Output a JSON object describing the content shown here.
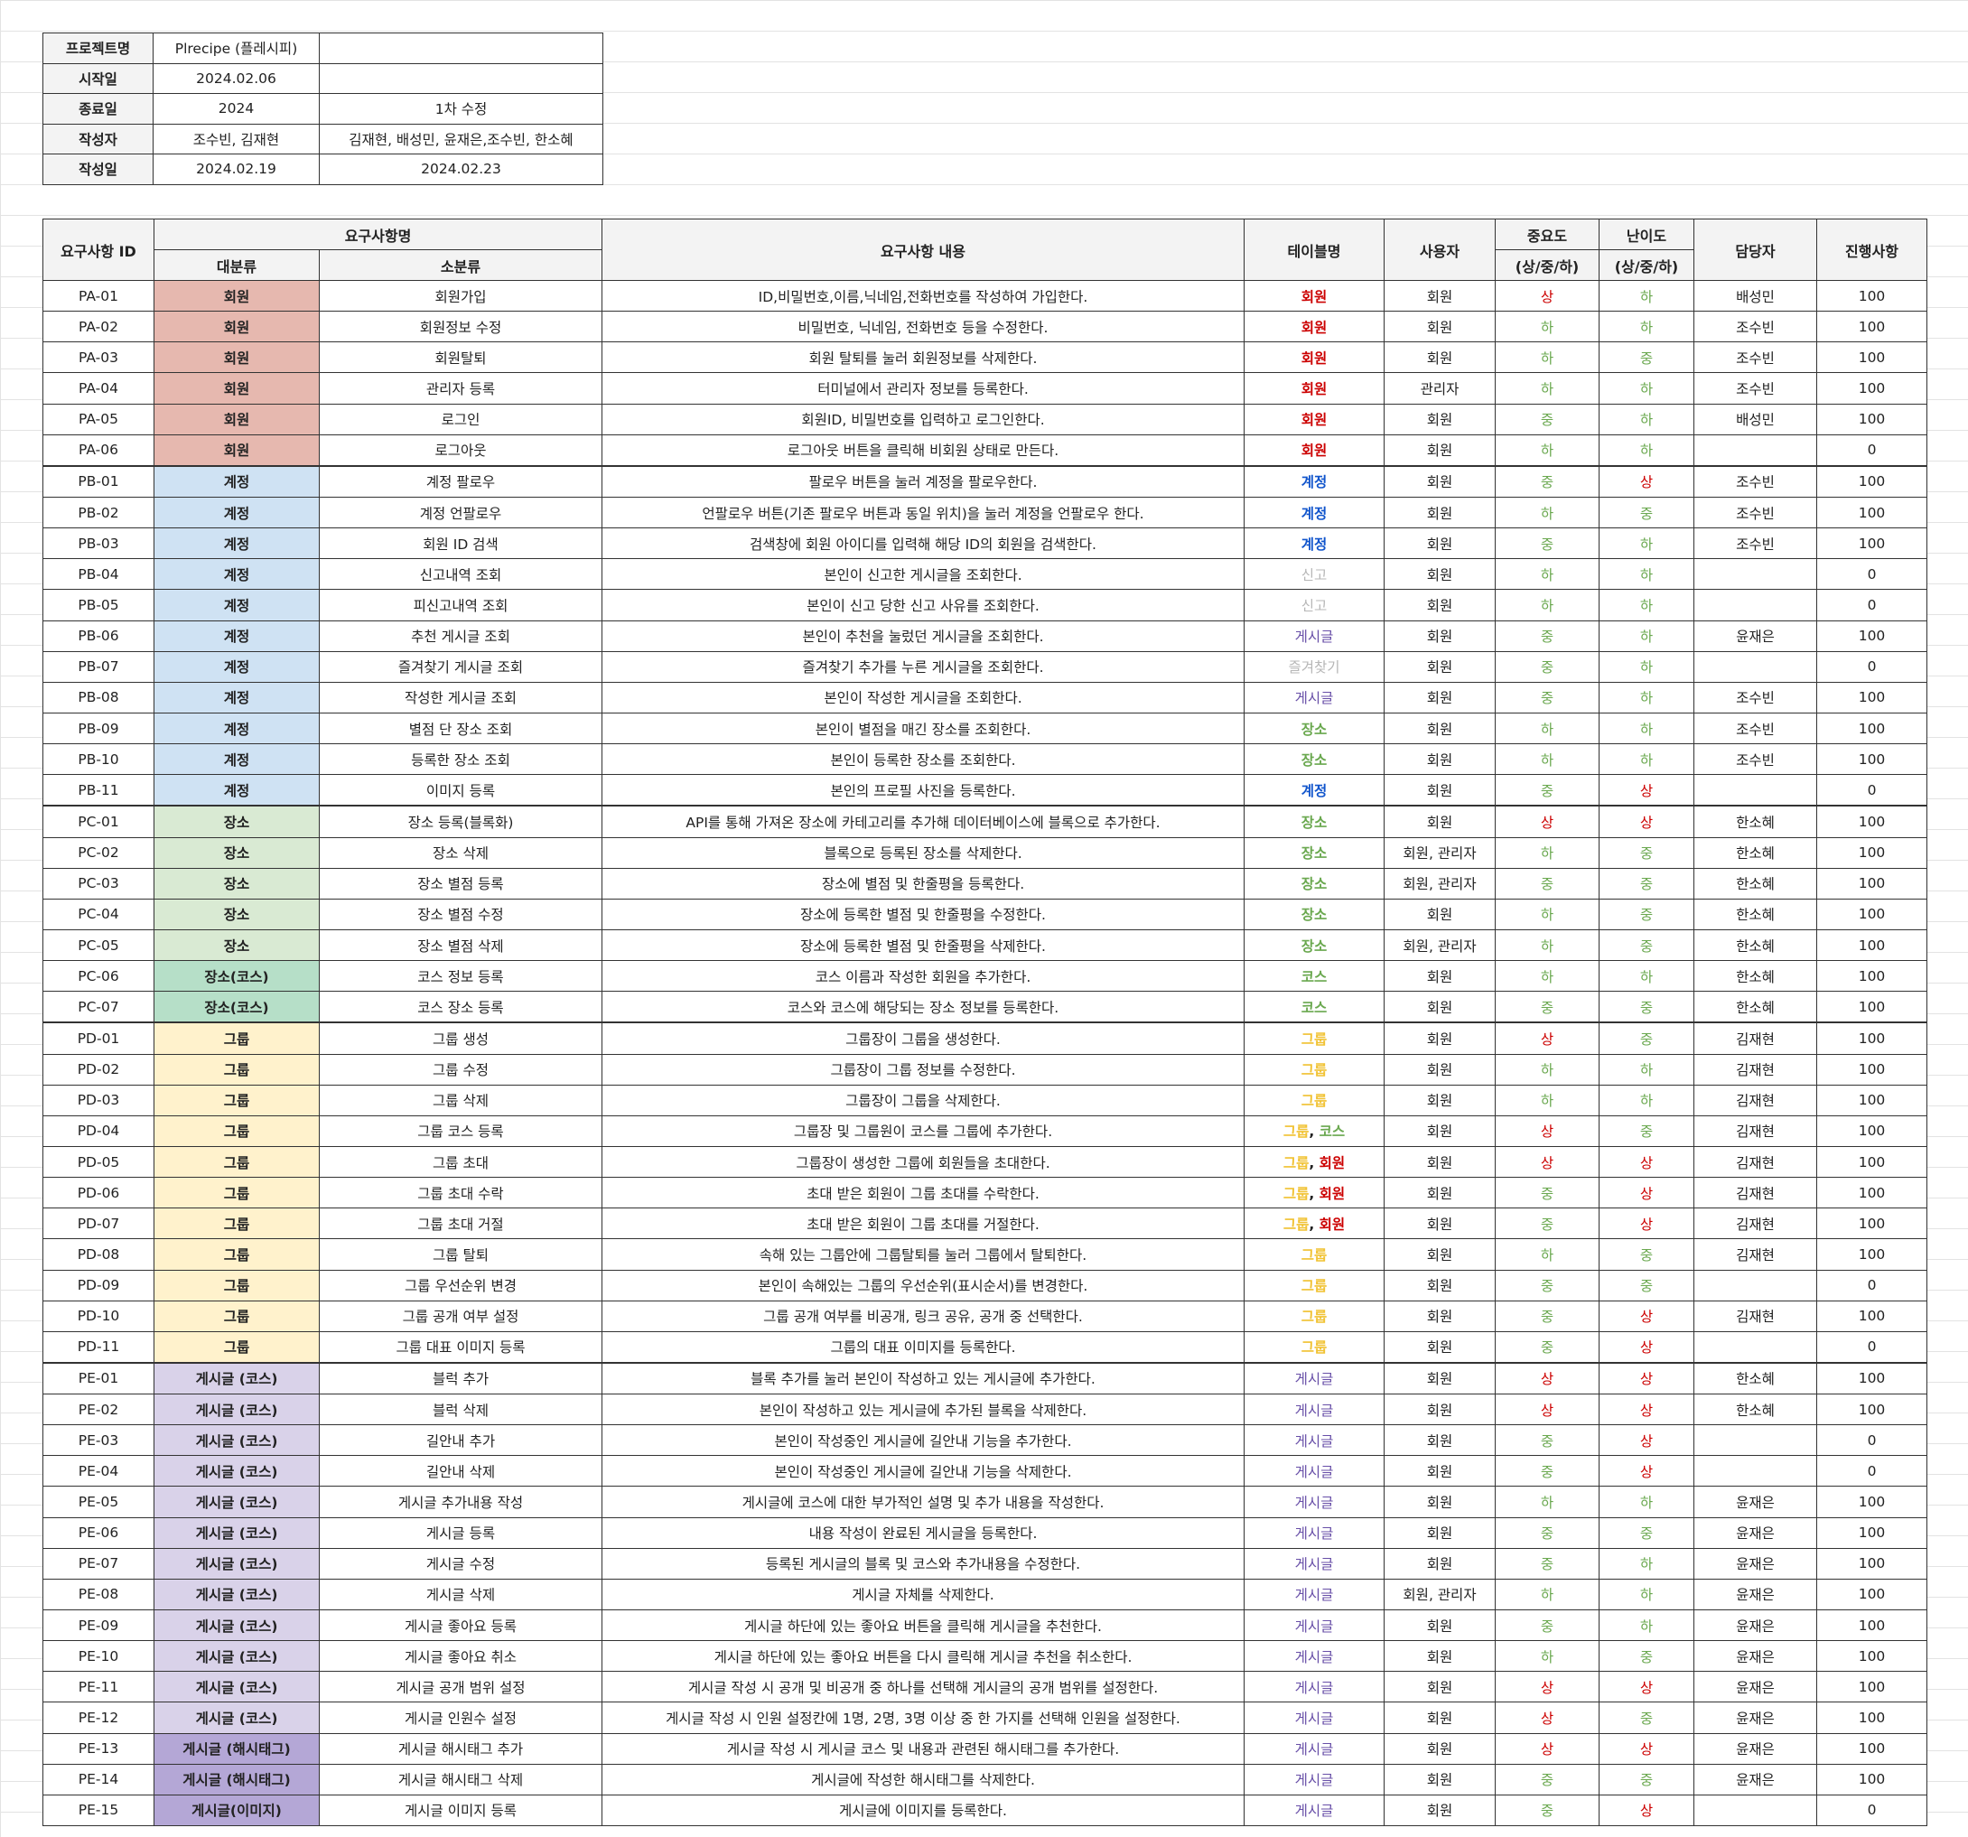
{
  "info": {
    "project_label": "프로젝트명",
    "project_value": "Plrecipe (플레시피)",
    "start_label": "시작일",
    "start_value": "2024.02.06",
    "end_label": "종료일",
    "end_value": "2024",
    "end_note": "1차 수정",
    "author_label": "작성자",
    "author_value": "조수빈, 김재현",
    "author_note": "김재현, 배성민, 윤재은,조수빈, 한소혜",
    "date_label": "작성일",
    "date_value": "2024.02.19",
    "date_note": "2024.02.23"
  },
  "headers": {
    "id": "요구사항 ID",
    "name": "요구사항명",
    "major": "대분류",
    "minor": "소분류",
    "content": "요구사항 내용",
    "table": "테이블명",
    "user": "사용자",
    "importance": "중요도",
    "importance_sub": "(상/중/하)",
    "difficulty": "난이도",
    "difficulty_sub": "(상/중/하)",
    "owner": "담당자",
    "progress": "진행사항"
  },
  "rows": [
    {
      "id": "PA-01",
      "cat": "회원",
      "cls": "회원",
      "minor": "회원가입",
      "content": "ID,비밀번호,이름,닉네임,전화번호를 작성하여 가입한다.",
      "tables": [
        {
          "t": "회원",
          "c": "회원"
        }
      ],
      "user": "회원",
      "imp": "상",
      "dif": "하",
      "owner": "배성민",
      "prog": "100"
    },
    {
      "id": "PA-02",
      "cat": "회원",
      "cls": "회원",
      "minor": "회원정보 수정",
      "content": "비밀번호, 닉네임, 전화번호 등을 수정한다.",
      "tables": [
        {
          "t": "회원",
          "c": "회원"
        }
      ],
      "user": "회원",
      "imp": "하",
      "dif": "하",
      "owner": "조수빈",
      "prog": "100"
    },
    {
      "id": "PA-03",
      "cat": "회원",
      "cls": "회원",
      "minor": "회원탈퇴",
      "content": "회원 탈퇴를 눌러 회원정보를 삭제한다.",
      "tables": [
        {
          "t": "회원",
          "c": "회원"
        }
      ],
      "user": "회원",
      "imp": "하",
      "dif": "중",
      "owner": "조수빈",
      "prog": "100"
    },
    {
      "id": "PA-04",
      "cat": "회원",
      "cls": "회원",
      "minor": "관리자 등록",
      "content": "터미널에서 관리자 정보를 등록한다.",
      "tables": [
        {
          "t": "회원",
          "c": "회원"
        }
      ],
      "user": "관리자",
      "imp": "하",
      "dif": "하",
      "owner": "조수빈",
      "prog": "100"
    },
    {
      "id": "PA-05",
      "cat": "회원",
      "cls": "회원",
      "minor": "로그인",
      "content": "회원ID, 비밀번호를 입력하고 로그인한다.",
      "tables": [
        {
          "t": "회원",
          "c": "회원"
        }
      ],
      "user": "회원",
      "imp": "중",
      "dif": "하",
      "owner": "배성민",
      "prog": "100"
    },
    {
      "id": "PA-06",
      "cat": "회원",
      "cls": "회원",
      "minor": "로그아웃",
      "content": "로그아웃 버튼을 클릭해 비회원 상태로 만든다.",
      "tables": [
        {
          "t": "회원",
          "c": "회원"
        }
      ],
      "user": "회원",
      "imp": "하",
      "dif": "하",
      "owner": "",
      "prog": "0"
    },
    {
      "id": "PB-01",
      "cat": "계정",
      "cls": "계정",
      "minor": "계정 팔로우",
      "content": "팔로우 버튼을 눌러 계정을 팔로우한다.",
      "tables": [
        {
          "t": "계정",
          "c": "계정"
        }
      ],
      "user": "회원",
      "imp": "중",
      "dif": "상",
      "owner": "조수빈",
      "prog": "100",
      "top": true
    },
    {
      "id": "PB-02",
      "cat": "계정",
      "cls": "계정",
      "minor": "계정 언팔로우",
      "content": "언팔로우 버튼(기존 팔로우 버튼과 동일 위치)을 눌러 계정을 언팔로우 한다.",
      "tables": [
        {
          "t": "계정",
          "c": "계정"
        }
      ],
      "user": "회원",
      "imp": "하",
      "dif": "중",
      "owner": "조수빈",
      "prog": "100"
    },
    {
      "id": "PB-03",
      "cat": "계정",
      "cls": "계정",
      "minor": "회원 ID 검색",
      "content": "검색창에 회원 아이디를 입력해 해당 ID의 회원을 검색한다.",
      "tables": [
        {
          "t": "계정",
          "c": "계정"
        }
      ],
      "user": "회원",
      "imp": "중",
      "dif": "하",
      "owner": "조수빈",
      "prog": "100"
    },
    {
      "id": "PB-04",
      "cat": "계정",
      "cls": "계정",
      "minor": "신고내역 조회",
      "content": "본인이 신고한 게시글을 조회한다.",
      "tables": [
        {
          "t": "신고",
          "c": "신고"
        }
      ],
      "user": "회원",
      "imp": "하",
      "dif": "하",
      "owner": "",
      "prog": "0"
    },
    {
      "id": "PB-05",
      "cat": "계정",
      "cls": "계정",
      "minor": "피신고내역 조회",
      "content": "본인이 신고 당한 신고 사유를 조회한다.",
      "tables": [
        {
          "t": "신고",
          "c": "신고"
        }
      ],
      "user": "회원",
      "imp": "하",
      "dif": "하",
      "owner": "",
      "prog": "0"
    },
    {
      "id": "PB-06",
      "cat": "계정",
      "cls": "계정",
      "minor": "추천 게시글 조회",
      "content": "본인이 추천을 눌렀던 게시글을 조회한다.",
      "tables": [
        {
          "t": "게시글",
          "c": "게시글"
        }
      ],
      "user": "회원",
      "imp": "중",
      "dif": "하",
      "owner": "윤재은",
      "prog": "100"
    },
    {
      "id": "PB-07",
      "cat": "계정",
      "cls": "계정",
      "minor": "즐겨찾기 게시글 조회",
      "content": "즐겨찾기 추가를 누른 게시글을 조회한다.",
      "tables": [
        {
          "t": "즐겨찾기",
          "c": "즐겨찾기"
        }
      ],
      "user": "회원",
      "imp": "중",
      "dif": "하",
      "owner": "",
      "prog": "0"
    },
    {
      "id": "PB-08",
      "cat": "계정",
      "cls": "계정",
      "minor": "작성한 게시글 조회",
      "content": "본인이 작성한 게시글을 조회한다.",
      "tables": [
        {
          "t": "게시글",
          "c": "게시글"
        }
      ],
      "user": "회원",
      "imp": "중",
      "dif": "하",
      "owner": "조수빈",
      "prog": "100"
    },
    {
      "id": "PB-09",
      "cat": "계정",
      "cls": "계정",
      "minor": "별점 단 장소 조회",
      "content": "본인이 별점을 매긴 장소를 조회한다.",
      "tables": [
        {
          "t": "장소",
          "c": "장소"
        }
      ],
      "user": "회원",
      "imp": "하",
      "dif": "하",
      "owner": "조수빈",
      "prog": "100"
    },
    {
      "id": "PB-10",
      "cat": "계정",
      "cls": "계정",
      "minor": "등록한 장소 조회",
      "content": "본인이 등록한 장소를 조회한다.",
      "tables": [
        {
          "t": "장소",
          "c": "장소"
        }
      ],
      "user": "회원",
      "imp": "하",
      "dif": "하",
      "owner": "조수빈",
      "prog": "100"
    },
    {
      "id": "PB-11",
      "cat": "계정",
      "cls": "계정",
      "minor": "이미지 등록",
      "content": "본인의 프로필 사진을 등록한다.",
      "tables": [
        {
          "t": "계정",
          "c": "계정"
        }
      ],
      "user": "회원",
      "imp": "중",
      "dif": "상",
      "owner": "",
      "prog": "0"
    },
    {
      "id": "PC-01",
      "cat": "장소",
      "cls": "장소",
      "minor": "장소 등록(블록화)",
      "content": "API를 통해 가져온 장소에 카테고리를 추가해 데이터베이스에 블록으로 추가한다.",
      "tables": [
        {
          "t": "장소",
          "c": "장소"
        }
      ],
      "user": "회원",
      "imp": "상",
      "dif": "상",
      "owner": "한소혜",
      "prog": "100",
      "top": true
    },
    {
      "id": "PC-02",
      "cat": "장소",
      "cls": "장소",
      "minor": "장소 삭제",
      "content": "블록으로 등록된 장소를 삭제한다.",
      "tables": [
        {
          "t": "장소",
          "c": "장소"
        }
      ],
      "user": "회원, 관리자",
      "imp": "하",
      "dif": "중",
      "owner": "한소혜",
      "prog": "100"
    },
    {
      "id": "PC-03",
      "cat": "장소",
      "cls": "장소",
      "minor": "장소 별점 등록",
      "content": "장소에 별점 및 한줄평을 등록한다.",
      "tables": [
        {
          "t": "장소",
          "c": "장소"
        }
      ],
      "user": "회원, 관리자",
      "imp": "중",
      "dif": "중",
      "owner": "한소혜",
      "prog": "100"
    },
    {
      "id": "PC-04",
      "cat": "장소",
      "cls": "장소",
      "minor": "장소 별점 수정",
      "content": "장소에 등록한 별점 및 한줄평을 수정한다.",
      "tables": [
        {
          "t": "장소",
          "c": "장소"
        }
      ],
      "user": "회원",
      "imp": "하",
      "dif": "중",
      "owner": "한소혜",
      "prog": "100"
    },
    {
      "id": "PC-05",
      "cat": "장소",
      "cls": "장소",
      "minor": "장소 별점 삭제",
      "content": "장소에 등록한 별점 및 한줄평을 삭제한다.",
      "tables": [
        {
          "t": "장소",
          "c": "장소"
        }
      ],
      "user": "회원, 관리자",
      "imp": "하",
      "dif": "중",
      "owner": "한소혜",
      "prog": "100"
    },
    {
      "id": "PC-06",
      "cat": "장소(코스)",
      "cls": "장소코스",
      "minor": "코스 정보 등록",
      "content": "코스 이름과 작성한 회원을 추가한다.",
      "tables": [
        {
          "t": "코스",
          "c": "코스"
        }
      ],
      "user": "회원",
      "imp": "하",
      "dif": "하",
      "owner": "한소혜",
      "prog": "100"
    },
    {
      "id": "PC-07",
      "cat": "장소(코스)",
      "cls": "장소코스",
      "minor": "코스 장소 등록",
      "content": "코스와 코스에 해당되는 장소 정보를 등록한다.",
      "tables": [
        {
          "t": "코스",
          "c": "코스"
        }
      ],
      "user": "회원",
      "imp": "중",
      "dif": "중",
      "owner": "한소혜",
      "prog": "100"
    },
    {
      "id": "PD-01",
      "cat": "그룹",
      "cls": "그룹",
      "minor": "그룹 생성",
      "content": "그룹장이 그룹을 생성한다.",
      "tables": [
        {
          "t": "그룹",
          "c": "그룹"
        }
      ],
      "user": "회원",
      "imp": "상",
      "dif": "중",
      "owner": "김재현",
      "prog": "100",
      "top": true
    },
    {
      "id": "PD-02",
      "cat": "그룹",
      "cls": "그룹",
      "minor": "그룹 수정",
      "content": "그룹장이 그룹 정보를 수정한다.",
      "tables": [
        {
          "t": "그룹",
          "c": "그룹"
        }
      ],
      "user": "회원",
      "imp": "하",
      "dif": "하",
      "owner": "김재현",
      "prog": "100"
    },
    {
      "id": "PD-03",
      "cat": "그룹",
      "cls": "그룹",
      "minor": "그룹 삭제",
      "content": "그룹장이 그룹을 삭제한다.",
      "tables": [
        {
          "t": "그룹",
          "c": "그룹"
        }
      ],
      "user": "회원",
      "imp": "하",
      "dif": "하",
      "owner": "김재현",
      "prog": "100"
    },
    {
      "id": "PD-04",
      "cat": "그룹",
      "cls": "그룹",
      "minor": "그룹 코스 등록",
      "content": "그룹장 및 그룹원이 코스를 그룹에 추가한다.",
      "tables": [
        {
          "t": "그룹",
          "c": "그룹"
        },
        {
          "t": ", ",
          "c": ""
        },
        {
          "t": "코스",
          "c": "코스"
        }
      ],
      "user": "회원",
      "imp": "상",
      "dif": "중",
      "owner": "김재현",
      "prog": "100"
    },
    {
      "id": "PD-05",
      "cat": "그룹",
      "cls": "그룹",
      "minor": "그룹 초대",
      "content": "그룹장이 생성한 그룹에 회원들을 초대한다.",
      "tables": [
        {
          "t": "그룹",
          "c": "그룹"
        },
        {
          "t": ", ",
          "c": ""
        },
        {
          "t": "회원",
          "c": "회원"
        }
      ],
      "user": "회원",
      "imp": "상",
      "dif": "상",
      "owner": "김재현",
      "prog": "100"
    },
    {
      "id": "PD-06",
      "cat": "그룹",
      "cls": "그룹",
      "minor": "그룹 초대 수락",
      "content": "초대 받은 회원이 그룹 초대를 수락한다.",
      "tables": [
        {
          "t": "그룹",
          "c": "그룹"
        },
        {
          "t": ", ",
          "c": ""
        },
        {
          "t": "회원",
          "c": "회원"
        }
      ],
      "user": "회원",
      "imp": "중",
      "dif": "상",
      "owner": "김재현",
      "prog": "100"
    },
    {
      "id": "PD-07",
      "cat": "그룹",
      "cls": "그룹",
      "minor": "그룹 초대 거절",
      "content": "초대 받은 회원이 그룹 초대를 거절한다.",
      "tables": [
        {
          "t": "그룹",
          "c": "그룹"
        },
        {
          "t": ", ",
          "c": ""
        },
        {
          "t": "회원",
          "c": "회원"
        }
      ],
      "user": "회원",
      "imp": "중",
      "dif": "상",
      "owner": "김재현",
      "prog": "100"
    },
    {
      "id": "PD-08",
      "cat": "그룹",
      "cls": "그룹",
      "minor": "그룹 탈퇴",
      "content": "속해 있는 그룹안에 그룹탈퇴를 눌러 그룹에서 탈퇴한다.",
      "tables": [
        {
          "t": "그룹",
          "c": "그룹"
        }
      ],
      "user": "회원",
      "imp": "하",
      "dif": "중",
      "owner": "김재현",
      "prog": "100"
    },
    {
      "id": "PD-09",
      "cat": "그룹",
      "cls": "그룹",
      "minor": "그룹 우선순위 변경",
      "content": "본인이 속해있는 그룹의 우선순위(표시순서)를 변경한다.",
      "tables": [
        {
          "t": "그룹",
          "c": "그룹"
        }
      ],
      "user": "회원",
      "imp": "중",
      "dif": "중",
      "owner": "",
      "prog": "0"
    },
    {
      "id": "PD-10",
      "cat": "그룹",
      "cls": "그룹",
      "minor": "그룹 공개 여부 설정",
      "content": "그룹 공개 여부를 비공개, 링크 공유, 공개 중 선택한다.",
      "tables": [
        {
          "t": "그룹",
          "c": "그룹"
        }
      ],
      "user": "회원",
      "imp": "중",
      "dif": "상",
      "owner": "김재현",
      "prog": "100"
    },
    {
      "id": "PD-11",
      "cat": "그룹",
      "cls": "그룹",
      "minor": "그룹 대표 이미지 등록",
      "content": "그룹의 대표 이미지를 등록한다.",
      "tables": [
        {
          "t": "그룹",
          "c": "그룹"
        }
      ],
      "user": "회원",
      "imp": "중",
      "dif": "상",
      "owner": "",
      "prog": "0"
    },
    {
      "id": "PE-01",
      "cat": "게시글 (코스)",
      "cls": "게시글코스",
      "minor": "블럭 추가",
      "content": "블록 추가를 눌러 본인이 작성하고 있는 게시글에 추가한다.",
      "tables": [
        {
          "t": "게시글",
          "c": "게시글"
        }
      ],
      "user": "회원",
      "imp": "상",
      "dif": "상",
      "owner": "한소혜",
      "prog": "100",
      "top": true
    },
    {
      "id": "PE-02",
      "cat": "게시글 (코스)",
      "cls": "게시글코스",
      "minor": "블럭 삭제",
      "content": "본인이 작성하고 있는 게시글에 추가된 블록을 삭제한다.",
      "tables": [
        {
          "t": "게시글",
          "c": "게시글"
        }
      ],
      "user": "회원",
      "imp": "상",
      "dif": "상",
      "owner": "한소혜",
      "prog": "100"
    },
    {
      "id": "PE-03",
      "cat": "게시글 (코스)",
      "cls": "게시글코스",
      "minor": "길안내 추가",
      "content": "본인이 작성중인 게시글에 길안내 기능을 추가한다.",
      "tables": [
        {
          "t": "게시글",
          "c": "게시글"
        }
      ],
      "user": "회원",
      "imp": "중",
      "dif": "상",
      "owner": "",
      "prog": "0"
    },
    {
      "id": "PE-04",
      "cat": "게시글 (코스)",
      "cls": "게시글코스",
      "minor": "길안내 삭제",
      "content": "본인이 작성중인 게시글에 길안내 기능을 삭제한다.",
      "tables": [
        {
          "t": "게시글",
          "c": "게시글"
        }
      ],
      "user": "회원",
      "imp": "중",
      "dif": "상",
      "owner": "",
      "prog": "0"
    },
    {
      "id": "PE-05",
      "cat": "게시글 (코스)",
      "cls": "게시글코스",
      "minor": "게시글 추가내용 작성",
      "content": "게시글에 코스에 대한 부가적인 설명 및 추가 내용을 작성한다.",
      "tables": [
        {
          "t": "게시글",
          "c": "게시글"
        }
      ],
      "user": "회원",
      "imp": "하",
      "dif": "하",
      "owner": "윤재은",
      "prog": "100"
    },
    {
      "id": "PE-06",
      "cat": "게시글 (코스)",
      "cls": "게시글코스",
      "minor": "게시글 등록",
      "content": "내용 작성이 완료된 게시글을 등록한다.",
      "tables": [
        {
          "t": "게시글",
          "c": "게시글"
        }
      ],
      "user": "회원",
      "imp": "중",
      "dif": "중",
      "owner": "윤재은",
      "prog": "100"
    },
    {
      "id": "PE-07",
      "cat": "게시글 (코스)",
      "cls": "게시글코스",
      "minor": "게시글 수정",
      "content": "등록된 게시글의 블록 및 코스와 추가내용을 수정한다.",
      "tables": [
        {
          "t": "게시글",
          "c": "게시글"
        }
      ],
      "user": "회원",
      "imp": "중",
      "dif": "하",
      "owner": "윤재은",
      "prog": "100"
    },
    {
      "id": "PE-08",
      "cat": "게시글 (코스)",
      "cls": "게시글코스",
      "minor": "게시글 삭제",
      "content": "게시글 자체를 삭제한다.",
      "tables": [
        {
          "t": "게시글",
          "c": "게시글"
        }
      ],
      "user": "회원, 관리자",
      "imp": "하",
      "dif": "하",
      "owner": "윤재은",
      "prog": "100"
    },
    {
      "id": "PE-09",
      "cat": "게시글 (코스)",
      "cls": "게시글코스",
      "minor": "게시글 좋아요 등록",
      "content": "게시글 하단에 있는 좋아요 버튼을 클릭해 게시글을 추천한다.",
      "tables": [
        {
          "t": "게시글",
          "c": "게시글"
        }
      ],
      "user": "회원",
      "imp": "중",
      "dif": "하",
      "owner": "윤재은",
      "prog": "100"
    },
    {
      "id": "PE-10",
      "cat": "게시글 (코스)",
      "cls": "게시글코스",
      "minor": "게시글 좋아요 취소",
      "content": "게시글 하단에 있는 좋아요 버튼을 다시 클릭해 게시글 추천을 취소한다.",
      "tables": [
        {
          "t": "게시글",
          "c": "게시글"
        }
      ],
      "user": "회원",
      "imp": "하",
      "dif": "중",
      "owner": "윤재은",
      "prog": "100"
    },
    {
      "id": "PE-11",
      "cat": "게시글 (코스)",
      "cls": "게시글코스",
      "minor": "게시글 공개 범위 설정",
      "content": "게시글 작성 시 공개 및 비공개 중 하나를 선택해 게시글의 공개 범위를 설정한다.",
      "tables": [
        {
          "t": "게시글",
          "c": "게시글"
        }
      ],
      "user": "회원",
      "imp": "상",
      "dif": "상",
      "owner": "윤재은",
      "prog": "100"
    },
    {
      "id": "PE-12",
      "cat": "게시글 (코스)",
      "cls": "게시글코스",
      "minor": "게시글 인원수 설정",
      "content": "게시글 작성 시 인원 설정칸에 1명, 2명, 3명 이상 중 한 가지를 선택해 인원을 설정한다.",
      "tables": [
        {
          "t": "게시글",
          "c": "게시글"
        }
      ],
      "user": "회원",
      "imp": "상",
      "dif": "중",
      "owner": "윤재은",
      "prog": "100"
    },
    {
      "id": "PE-13",
      "cat": "게시글 (해시태그)",
      "cls": "게시글해시",
      "minor": "게시글 해시태그 추가",
      "content": "게시글 작성 시 게시글 코스 및 내용과 관련된 해시태그를 추가한다.",
      "tables": [
        {
          "t": "게시글",
          "c": "게시글"
        }
      ],
      "user": "회원",
      "imp": "상",
      "dif": "상",
      "owner": "윤재은",
      "prog": "100"
    },
    {
      "id": "PE-14",
      "cat": "게시글 (해시태그)",
      "cls": "게시글해시",
      "minor": "게시글 해시태그 삭제",
      "content": "게시글에 작성한 해시태그를 삭제한다.",
      "tables": [
        {
          "t": "게시글",
          "c": "게시글"
        }
      ],
      "user": "회원",
      "imp": "중",
      "dif": "중",
      "owner": "윤재은",
      "prog": "100"
    },
    {
      "id": "PE-15",
      "cat": "게시글(이미지)",
      "cls": "게시글이미지",
      "minor": "게시글 이미지 등록",
      "content": "게시글에 이미지를 등록한다.",
      "tables": [
        {
          "t": "게시글",
          "c": "게시글"
        }
      ],
      "user": "회원",
      "imp": "중",
      "dif": "상",
      "owner": "",
      "prog": "0"
    }
  ]
}
